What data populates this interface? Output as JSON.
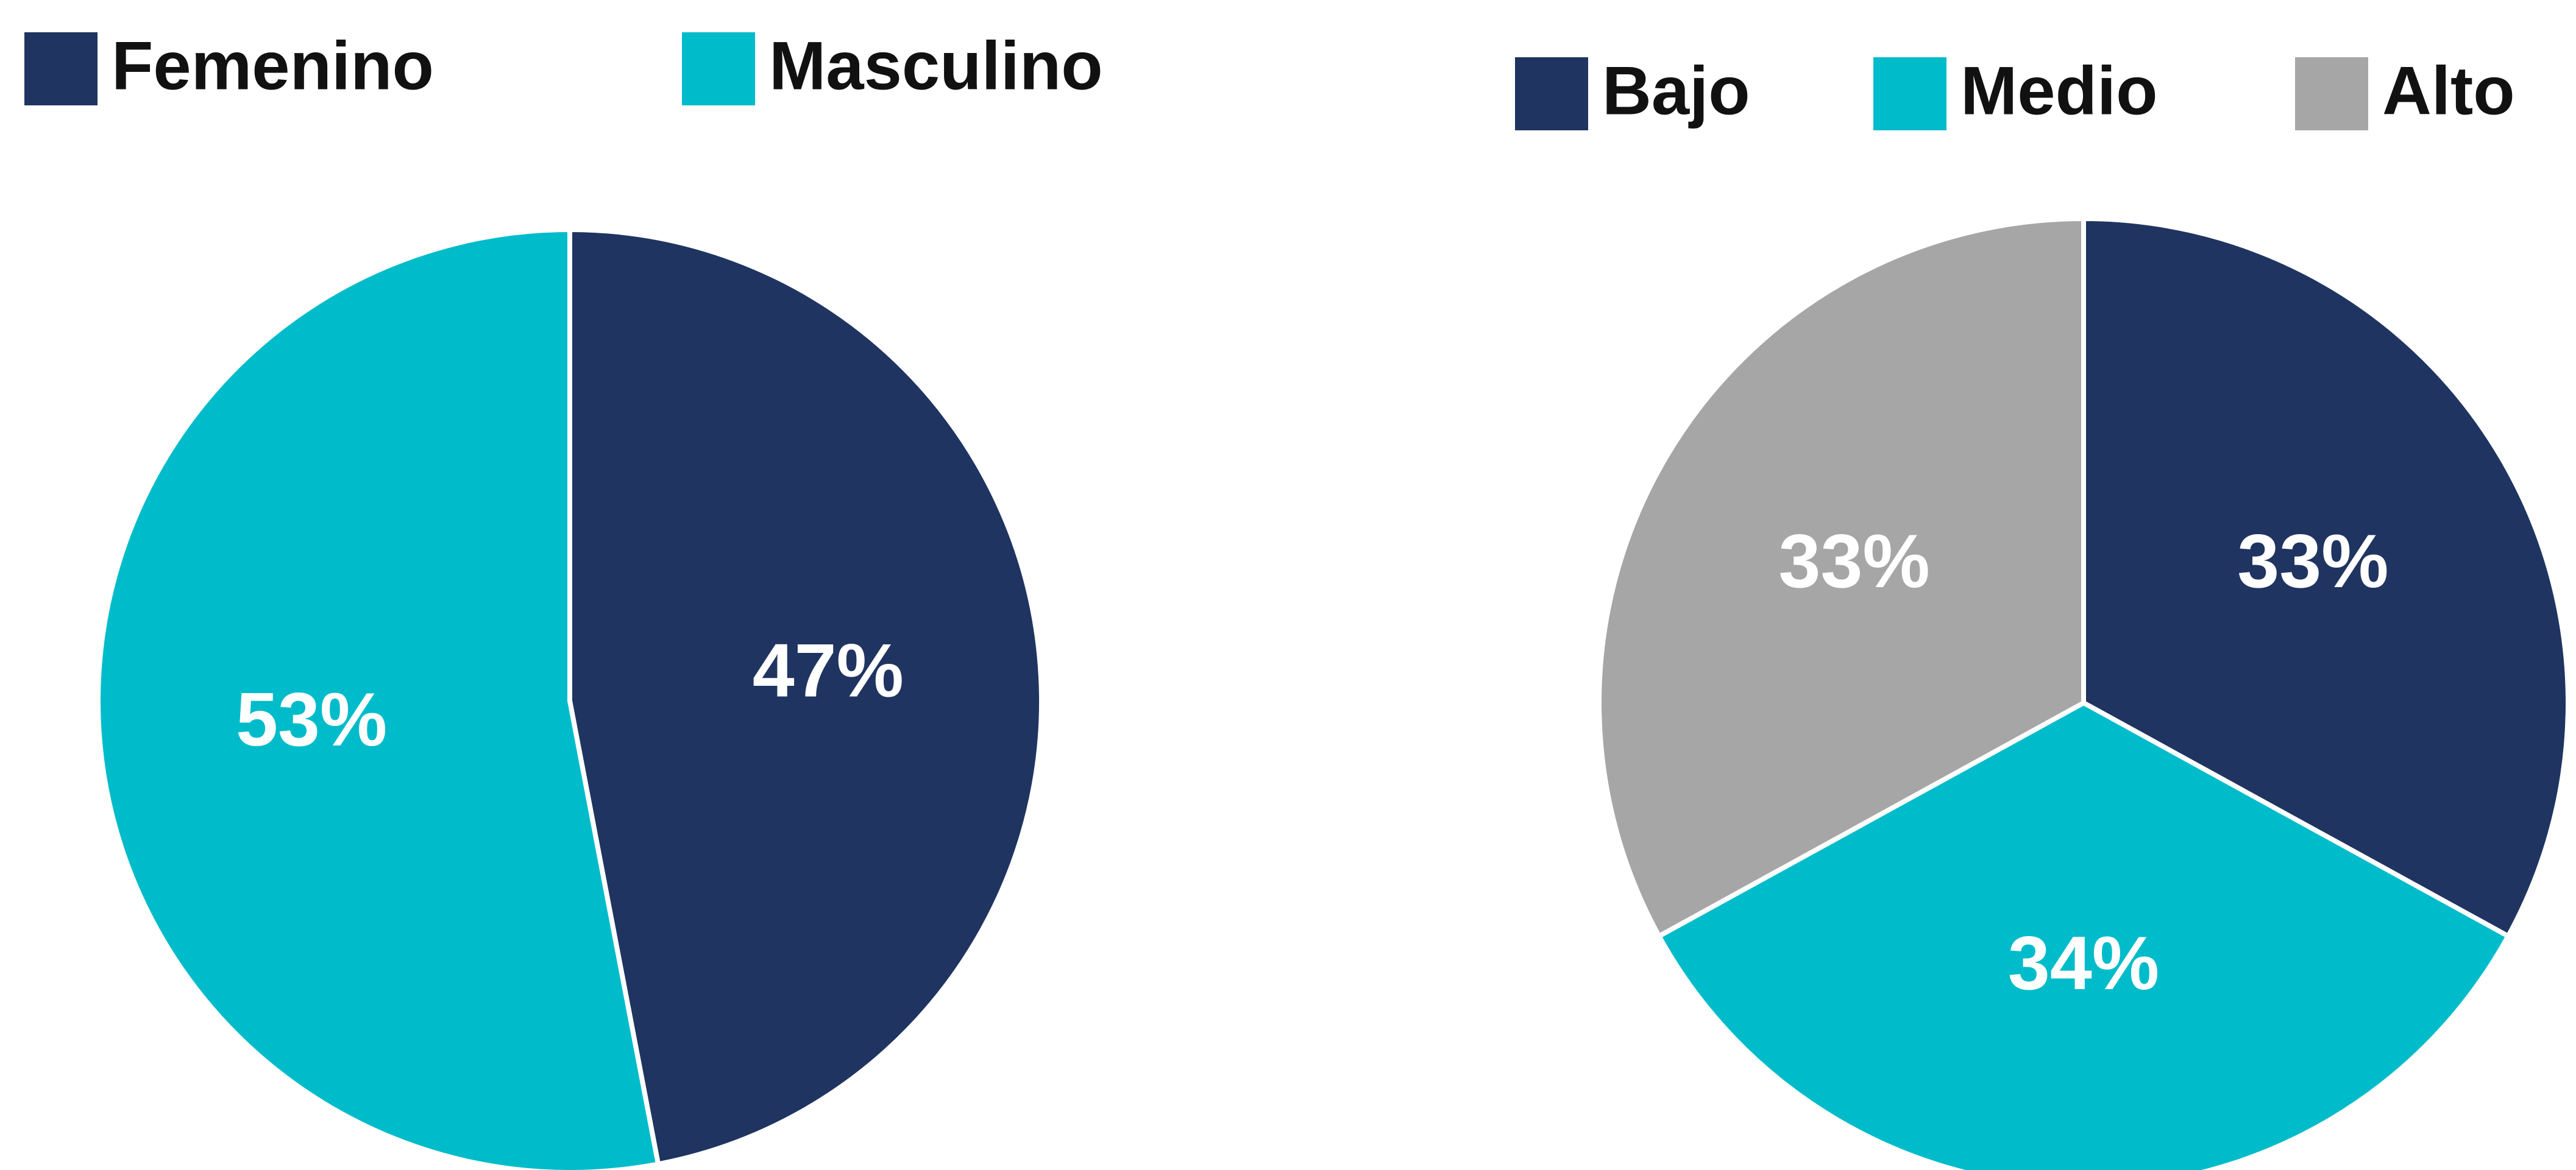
{
  "chart_data": [
    {
      "type": "pie",
      "categories": [
        "Femenino",
        "Masculino"
      ],
      "values": [
        47,
        53
      ],
      "value_labels": [
        "47%",
        "53%"
      ],
      "colors": [
        "#1f3460",
        "#00bcca"
      ]
    },
    {
      "type": "pie",
      "categories": [
        "Bajo",
        "Medio",
        "Alto"
      ],
      "values": [
        33,
        34,
        33
      ],
      "value_labels": [
        "33%",
        "34%",
        "33%"
      ],
      "colors": [
        "#1f3460",
        "#00bcca",
        "#a6a6a6"
      ]
    }
  ]
}
